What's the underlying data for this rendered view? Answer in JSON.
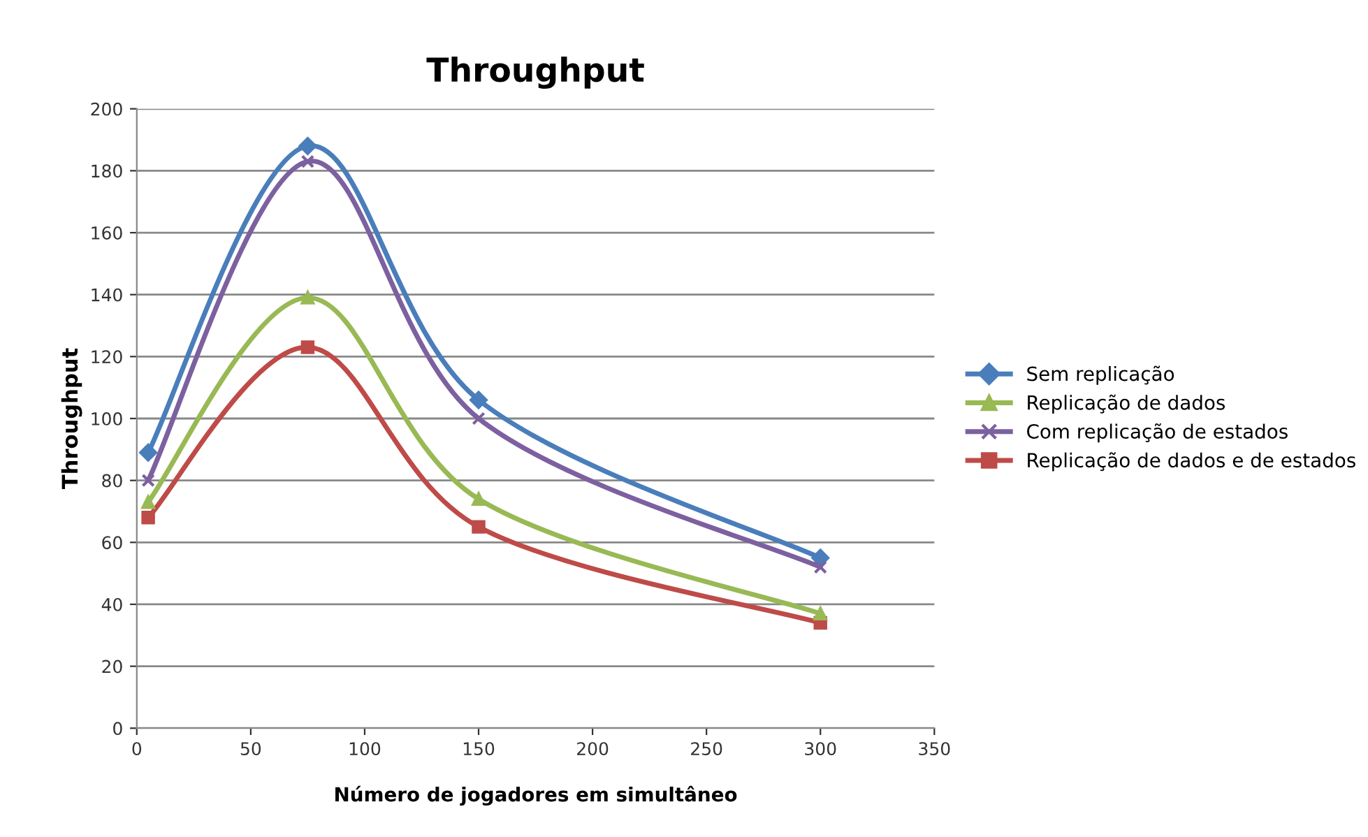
{
  "chart_data": {
    "type": "line",
    "title": "Throughput",
    "xlabel": "Número de jogadores em simultâneo",
    "ylabel": "Throughput",
    "x": [
      5,
      75,
      150,
      300
    ],
    "series": [
      {
        "name": "Sem replicação",
        "color": "#4a7ebb",
        "marker": "diamond",
        "values": [
          89,
          188,
          106,
          55
        ]
      },
      {
        "name": "Replicação de dados",
        "color": "#98b954",
        "marker": "triangle",
        "values": [
          73,
          139,
          74,
          37
        ]
      },
      {
        "name": "Com replicação de estados",
        "color": "#7d60a0",
        "marker": "cross",
        "values": [
          80,
          183,
          100,
          52
        ]
      },
      {
        "name": "Replicação de dados e de estados",
        "color": "#be4b48",
        "marker": "square",
        "values": [
          68,
          123,
          65,
          34
        ]
      }
    ],
    "xlim": [
      0,
      350
    ],
    "xticks": [
      0,
      50,
      100,
      150,
      200,
      250,
      300,
      350
    ],
    "ylim": [
      0,
      200
    ],
    "yticks": [
      0,
      20,
      40,
      60,
      80,
      100,
      120,
      140,
      160,
      180,
      200
    ],
    "grid": "y",
    "legend": "right",
    "line_style": "solid"
  }
}
